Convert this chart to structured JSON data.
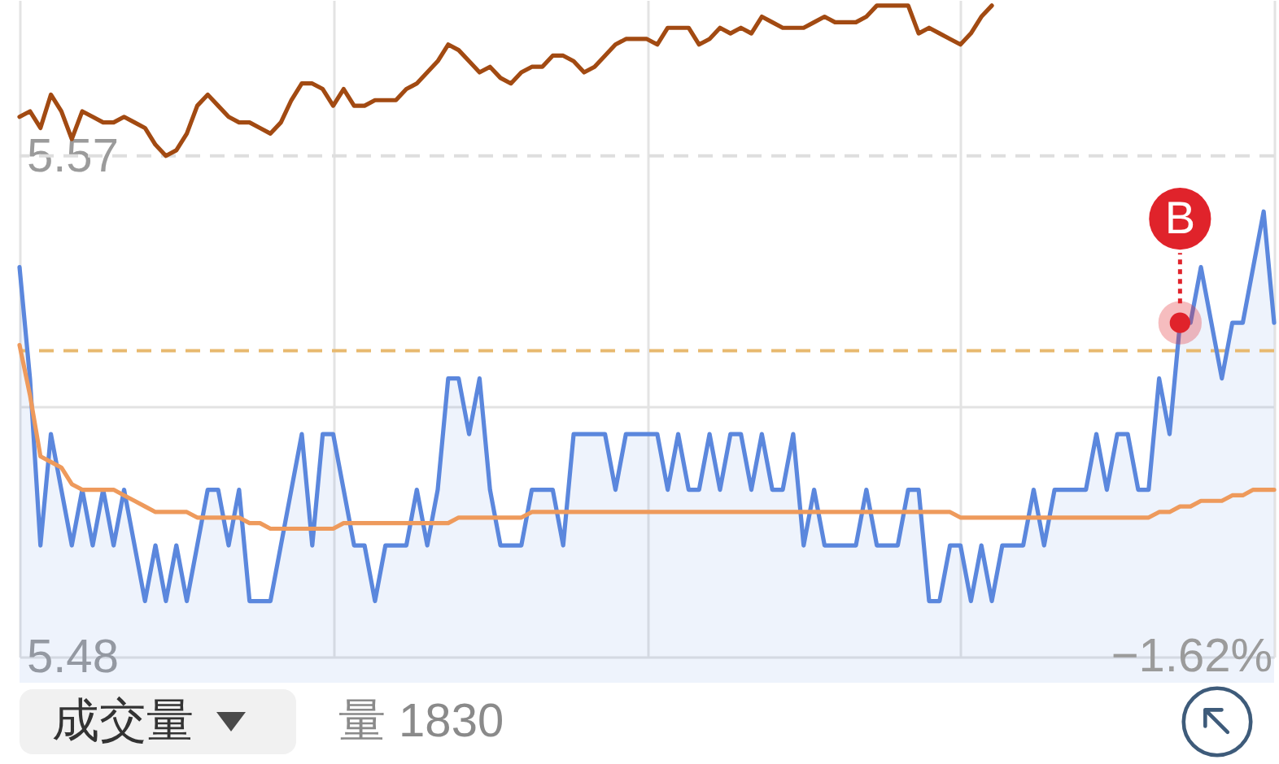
{
  "chart_data": {
    "type": "line",
    "categories": [
      null,
      null,
      null,
      null,
      null,
      null,
      null,
      null,
      null,
      null,
      null,
      null,
      null,
      null,
      null,
      null,
      null,
      null,
      null,
      null,
      null,
      null,
      null,
      null,
      null,
      null,
      null,
      null,
      null,
      null,
      null,
      null,
      null,
      null,
      null,
      null,
      null,
      null,
      null,
      null,
      null,
      null,
      null,
      null,
      null,
      null,
      null,
      null,
      null,
      null,
      null,
      null,
      null,
      null,
      null,
      null,
      null,
      null,
      null,
      null,
      null,
      null,
      null,
      null,
      null,
      null,
      null,
      null,
      null,
      null,
      null,
      null,
      null,
      null,
      null,
      null,
      null,
      null,
      null,
      null,
      null,
      null,
      null,
      null,
      null,
      null,
      null,
      null,
      null,
      null,
      null,
      null,
      null,
      null,
      null,
      null,
      null,
      null,
      null,
      null,
      null,
      null,
      null,
      null,
      null,
      null,
      null,
      null,
      null,
      null,
      null,
      null,
      null,
      null,
      null,
      null,
      null,
      null,
      null,
      null,
      null
    ],
    "series": [
      {
        "type": "area",
        "color": "#5b87dd",
        "values": [
          5.55,
          5.53,
          5.5,
          5.52,
          5.51,
          5.5,
          5.51,
          5.5,
          5.51,
          5.5,
          5.51,
          5.5,
          5.49,
          5.5,
          5.49,
          5.5,
          5.49,
          5.5,
          5.51,
          5.51,
          5.5,
          5.51,
          5.49,
          5.49,
          5.49,
          5.5,
          5.51,
          5.52,
          5.5,
          5.52,
          5.52,
          5.51,
          5.5,
          5.5,
          5.49,
          5.5,
          5.5,
          5.5,
          5.51,
          5.5,
          5.51,
          5.53,
          5.53,
          5.52,
          5.53,
          5.51,
          5.5,
          5.5,
          5.5,
          5.51,
          5.51,
          5.51,
          5.5,
          5.52,
          5.52,
          5.52,
          5.52,
          5.51,
          5.52,
          5.52,
          5.52,
          5.52,
          5.51,
          5.52,
          5.51,
          5.51,
          5.52,
          5.51,
          5.52,
          5.52,
          5.51,
          5.52,
          5.51,
          5.51,
          5.52,
          5.5,
          5.51,
          5.5,
          5.5,
          5.5,
          5.5,
          5.51,
          5.5,
          5.5,
          5.5,
          5.51,
          5.51,
          5.49,
          5.49,
          5.5,
          5.5,
          5.49,
          5.5,
          5.49,
          5.5,
          5.5,
          5.5,
          5.51,
          5.5,
          5.51,
          5.51,
          5.51,
          5.51,
          5.52,
          5.51,
          5.52,
          5.52,
          5.51,
          5.51,
          5.53,
          5.52,
          5.54,
          5.54,
          5.55,
          5.54,
          5.53,
          5.54,
          5.54,
          5.55,
          5.56,
          5.54
        ]
      },
      {
        "type": "line",
        "color": "#ee9a5c",
        "values": [
          5.536,
          5.527,
          5.516,
          5.515,
          5.514,
          5.511,
          5.51,
          5.51,
          5.51,
          5.51,
          5.509,
          5.508,
          5.507,
          5.506,
          5.506,
          5.506,
          5.506,
          5.505,
          5.505,
          5.505,
          5.505,
          5.505,
          5.504,
          5.504,
          5.503,
          5.503,
          5.503,
          5.503,
          5.503,
          5.503,
          5.503,
          5.504,
          5.504,
          5.504,
          5.504,
          5.504,
          5.504,
          5.504,
          5.504,
          5.504,
          5.504,
          5.504,
          5.505,
          5.505,
          5.505,
          5.505,
          5.505,
          5.505,
          5.505,
          5.506,
          5.506,
          5.506,
          5.506,
          5.506,
          5.506,
          5.506,
          5.506,
          5.506,
          5.506,
          5.506,
          5.506,
          5.506,
          5.506,
          5.506,
          5.506,
          5.506,
          5.506,
          5.506,
          5.506,
          5.506,
          5.506,
          5.506,
          5.506,
          5.506,
          5.506,
          5.506,
          5.506,
          5.506,
          5.506,
          5.506,
          5.506,
          5.506,
          5.506,
          5.506,
          5.506,
          5.506,
          5.506,
          5.506,
          5.506,
          5.506,
          5.505,
          5.505,
          5.505,
          5.505,
          5.505,
          5.505,
          5.505,
          5.505,
          5.505,
          5.505,
          5.505,
          5.505,
          5.505,
          5.505,
          5.505,
          5.505,
          5.505,
          5.505,
          5.505,
          5.506,
          5.506,
          5.507,
          5.507,
          5.508,
          5.508,
          5.508,
          5.509,
          5.509,
          5.51,
          5.51,
          5.51
        ]
      },
      {
        "color": "#a24a12",
        "values": [
          5.577,
          5.578,
          5.575,
          5.581,
          5.578,
          5.573,
          5.578,
          5.577,
          5.576,
          5.576,
          5.577,
          5.576,
          5.575,
          5.572,
          5.57,
          5.571,
          5.574,
          5.579,
          5.581,
          5.579,
          5.577,
          5.576,
          5.576,
          5.575,
          5.574,
          5.576,
          5.58,
          5.583,
          5.583,
          5.582,
          5.579,
          5.582,
          5.579,
          5.579,
          5.58,
          5.58,
          5.58,
          5.582,
          5.583,
          5.585,
          5.587,
          5.59,
          5.589,
          5.587,
          5.585,
          5.586,
          5.584,
          5.583,
          5.585,
          5.586,
          5.586,
          5.588,
          5.588,
          5.587,
          5.585,
          5.586,
          5.588,
          5.59,
          5.591,
          5.591,
          5.591,
          5.59,
          5.593,
          5.593,
          5.593,
          5.59,
          5.591,
          5.593,
          5.592,
          5.593,
          5.592,
          5.595,
          5.594,
          5.593,
          5.593,
          5.593,
          5.594,
          5.595,
          5.594,
          5.594,
          5.594,
          5.595,
          5.597,
          5.597,
          5.597,
          5.597,
          5.592,
          5.593,
          5.592,
          5.591,
          5.59,
          5.592,
          5.595,
          5.597,
          null,
          null,
          null,
          null,
          null,
          null,
          null,
          null,
          null,
          null,
          null,
          null,
          null,
          null,
          null,
          null,
          null,
          null,
          null,
          null,
          null,
          null,
          null,
          null,
          null,
          null,
          null
        ]
      },
      {
        "type": "scatter",
        "name": "B",
        "color": "#e0232b",
        "values": [
          null,
          null,
          null,
          null,
          null,
          null,
          null,
          null,
          null,
          null,
          null,
          null,
          null,
          null,
          null,
          null,
          null,
          null,
          null,
          null,
          null,
          null,
          null,
          null,
          null,
          null,
          null,
          null,
          null,
          null,
          null,
          null,
          null,
          null,
          null,
          null,
          null,
          null,
          null,
          null,
          null,
          null,
          null,
          null,
          null,
          null,
          null,
          null,
          null,
          null,
          null,
          null,
          null,
          null,
          null,
          null,
          null,
          null,
          null,
          null,
          null,
          null,
          null,
          null,
          null,
          null,
          null,
          null,
          null,
          null,
          null,
          null,
          null,
          null,
          null,
          null,
          null,
          null,
          null,
          null,
          null,
          null,
          null,
          null,
          null,
          null,
          null,
          null,
          null,
          null,
          null,
          null,
          null,
          null,
          null,
          null,
          null,
          null,
          null,
          null,
          null,
          null,
          null,
          null,
          null,
          null,
          null,
          null,
          null,
          null,
          null,
          5.54,
          null,
          null,
          null,
          null,
          null,
          null,
          null,
          null,
          null
        ]
      }
    ],
    "ylim": [
      5.48,
      5.598
    ],
    "yticks": [
      5.48,
      {
        "value": 5.525,
        "label": null
      },
      5.57
    ],
    "grid": true,
    "ref_lines": [
      {
        "axis": "y",
        "value": 5.57,
        "color": "#dedede",
        "line_style": "dashed"
      },
      {
        "axis": "y",
        "value": 5.535,
        "color": "#e8b96f",
        "line_style": "dashed"
      }
    ],
    "annotations": [
      "−1.62%",
      "成交量",
      "量 1830"
    ]
  }
}
